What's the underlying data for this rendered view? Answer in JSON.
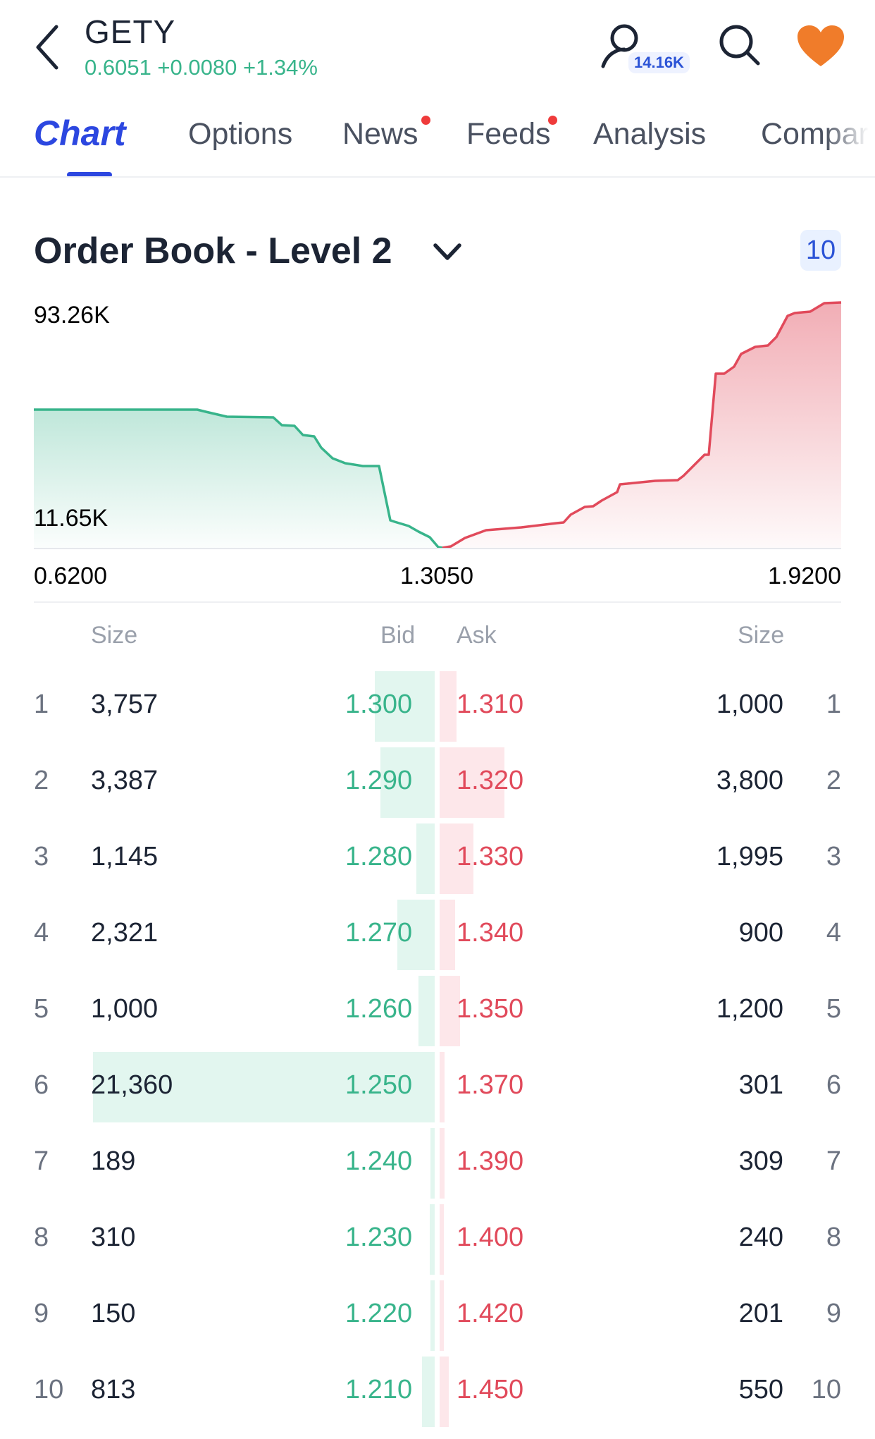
{
  "header": {
    "ticker": "GETY",
    "quote": "0.6051 +0.0080 +1.34%",
    "followers": "14.16K"
  },
  "tabs": [
    {
      "label": "Chart",
      "active": true,
      "dot": false
    },
    {
      "label": "Options",
      "active": false,
      "dot": false
    },
    {
      "label": "News",
      "active": false,
      "dot": true
    },
    {
      "label": "Feeds",
      "active": false,
      "dot": true
    },
    {
      "label": "Analysis",
      "active": false,
      "dot": false
    },
    {
      "label": "Compar",
      "active": false,
      "dot": false
    }
  ],
  "orderbook": {
    "title": "Order Book - Level 2",
    "depth": "10",
    "chart": {
      "max_label": "93.26K",
      "min_label": "11.65K",
      "x_left": "0.6200",
      "x_mid": "1.3050",
      "x_right": "1.9200"
    },
    "headers": {
      "size_left": "Size",
      "bid": "Bid",
      "ask": "Ask",
      "size_right": "Size"
    },
    "rows": [
      {
        "rank": "1",
        "bid_size": "3,757",
        "bid": "1.300",
        "ask": "1.310",
        "ask_size": "1,000",
        "rank_r": "1"
      },
      {
        "rank": "2",
        "bid_size": "3,387",
        "bid": "1.290",
        "ask": "1.320",
        "ask_size": "3,800",
        "rank_r": "2"
      },
      {
        "rank": "3",
        "bid_size": "1,145",
        "bid": "1.280",
        "ask": "1.330",
        "ask_size": "1,995",
        "rank_r": "3"
      },
      {
        "rank": "4",
        "bid_size": "2,321",
        "bid": "1.270",
        "ask": "1.340",
        "ask_size": "900",
        "rank_r": "4"
      },
      {
        "rank": "5",
        "bid_size": "1,000",
        "bid": "1.260",
        "ask": "1.350",
        "ask_size": "1,200",
        "rank_r": "5"
      },
      {
        "rank": "6",
        "bid_size": "21,360",
        "bid": "1.250",
        "ask": "1.370",
        "ask_size": "301",
        "rank_r": "6"
      },
      {
        "rank": "7",
        "bid_size": "189",
        "bid": "1.240",
        "ask": "1.390",
        "ask_size": "309",
        "rank_r": "7"
      },
      {
        "rank": "8",
        "bid_size": "310",
        "bid": "1.230",
        "ask": "1.400",
        "ask_size": "240",
        "rank_r": "8"
      },
      {
        "rank": "9",
        "bid_size": "150",
        "bid": "1.220",
        "ask": "1.420",
        "ask_size": "201",
        "rank_r": "9"
      },
      {
        "rank": "10",
        "bid_size": "813",
        "bid": "1.210",
        "ask": "1.450",
        "ask_size": "550",
        "rank_r": "10"
      }
    ]
  },
  "colors": {
    "bid": "#38b48b",
    "ask": "#e14a5b",
    "accent": "#2c47e0",
    "heart": "#f07c2a"
  },
  "icons": [
    "back-arrow-icon",
    "user-icon",
    "search-icon",
    "heart-icon",
    "chevron-down-icon"
  ]
}
